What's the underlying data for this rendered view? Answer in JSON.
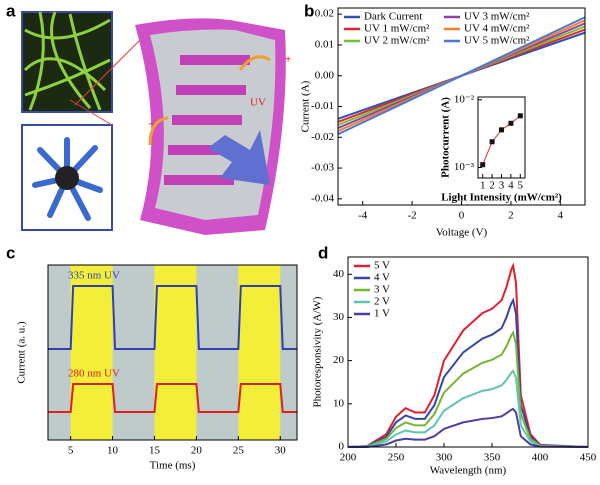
{
  "panel_labels": [
    "a",
    "b",
    "c",
    "d"
  ],
  "illustration": {
    "labels": [
      "UV",
      "+",
      "−"
    ]
  },
  "chart_data": [
    {
      "type": "line",
      "xlabel": "Voltage (V)",
      "ylabel": "Current (A)",
      "x": [
        -5,
        5
      ],
      "xlim": [
        -5,
        5
      ],
      "xticks": [
        -4,
        -2,
        0,
        2,
        4
      ],
      "ylim": [
        -0.042,
        0.022
      ],
      "yticks": [
        -0.04,
        -0.03,
        -0.02,
        -0.01,
        {
          "value": 0,
          "label": "0.00"
        },
        0.01,
        0.02
      ],
      "legend": "upper left",
      "legend_columns": 2,
      "series": [
        {
          "name": "Dark Current",
          "color": "#2f4fbf",
          "values": [
            -0.014,
            0.014
          ]
        },
        {
          "name": "UV 1 mW/cm²",
          "color": "#e02828",
          "values": [
            -0.015,
            0.015
          ]
        },
        {
          "name": "UV 2 mW/cm²",
          "color": "#72c034",
          "values": [
            -0.016,
            0.016
          ]
        },
        {
          "name": "UV 3 mW/cm²",
          "color": "#9040a8",
          "values": [
            -0.017,
            0.017
          ]
        },
        {
          "name": "UV 4 mW/cm²",
          "color": "#f08030",
          "values": [
            -0.018,
            0.018
          ]
        },
        {
          "name": "UV 5 mW/cm²",
          "color": "#4a78d8",
          "values": [
            -0.019,
            0.019
          ]
        }
      ]
    },
    {
      "type": "scatter",
      "xlabel": "Light Intensity (mW/cm²)",
      "ylabel": "Photocurrent (A)",
      "x": [
        1,
        2,
        3,
        4,
        5
      ],
      "values": [
        0.0011,
        0.0024,
        0.0036,
        0.0045,
        0.0058
      ],
      "color": "#111111",
      "line_color": "#e03030",
      "xlim": [
        0.5,
        5.5
      ],
      "xticks": [
        1,
        2,
        3,
        4,
        5
      ],
      "ylog": true,
      "ylim": [
        0.0007,
        0.011
      ],
      "yticks": [
        {
          "value": 0.001,
          "label": "10⁻³"
        },
        {
          "value": 0.01,
          "label": "10⁻²"
        }
      ]
    },
    {
      "type": "line",
      "xlabel": "Time (ms)",
      "ylabel": "Current (a. u.)",
      "x": [
        2.3,
        5,
        5.3,
        10,
        10.3,
        15,
        15.3,
        20,
        20.3,
        25,
        25.3,
        30,
        30.3,
        32
      ],
      "xlim": [
        2.3,
        32
      ],
      "xticks": [
        5,
        10,
        15,
        20,
        25,
        30
      ],
      "ylim": [
        0,
        1
      ],
      "plot_background": "#bfcbcb",
      "shade_color": "#f2ee3a",
      "shaded": [
        [
          5,
          10
        ],
        [
          15,
          20
        ],
        [
          25,
          30
        ]
      ],
      "series_labels": true,
      "series": [
        {
          "name": "335 nm UV",
          "color": "#3040b0",
          "values": [
            0.52,
            0.52,
            0.88,
            0.88,
            0.52,
            0.52,
            0.88,
            0.88,
            0.52,
            0.52,
            0.88,
            0.88,
            0.52,
            0.52
          ]
        },
        {
          "name": "280 nm UV",
          "color": "#e02020",
          "values": [
            0.16,
            0.16,
            0.32,
            0.32,
            0.16,
            0.16,
            0.32,
            0.32,
            0.16,
            0.16,
            0.32,
            0.32,
            0.16,
            0.16
          ]
        }
      ]
    },
    {
      "type": "line",
      "xlabel": "Wavelength (nm)",
      "ylabel": "Photoresponsivity (A/W)",
      "x": [
        200,
        220,
        240,
        250,
        260,
        270,
        280,
        290,
        300,
        320,
        340,
        350,
        360,
        365,
        370,
        372,
        375,
        380,
        390,
        400,
        450
      ],
      "xlim": [
        200,
        450
      ],
      "xticks": [
        200,
        250,
        300,
        350,
        400,
        450
      ],
      "ylim": [
        0,
        44
      ],
      "yticks": [
        0,
        10,
        20,
        30,
        40
      ],
      "legend": "upper left",
      "legend_columns": 1,
      "series": [
        {
          "name": "5 V",
          "color": "#e02030",
          "values": [
            0,
            0.2,
            3,
            7,
            9,
            8,
            8,
            12,
            20,
            27,
            31,
            32,
            34,
            37,
            41,
            42,
            38,
            12,
            3,
            0.5,
            0
          ]
        },
        {
          "name": "4 V",
          "color": "#3446a8",
          "values": [
            0,
            0.2,
            2.4,
            5.7,
            7.3,
            6.5,
            6.5,
            9.7,
            16.2,
            21.9,
            25.1,
            26,
            27.5,
            30,
            33.2,
            34,
            30.8,
            9.7,
            2.4,
            0.4,
            0
          ]
        },
        {
          "name": "3 V",
          "color": "#76b632",
          "values": [
            0,
            0.1,
            1.9,
            4.4,
            5.7,
            5,
            5,
            7.6,
            12.6,
            17,
            19.5,
            20.2,
            21.4,
            23.3,
            25.8,
            26.5,
            23.9,
            7.6,
            1.9,
            0.3,
            0
          ]
        },
        {
          "name": "2 V",
          "color": "#62c4b4",
          "values": [
            0,
            0.1,
            1.3,
            2.9,
            3.8,
            3.4,
            3.4,
            5,
            8.4,
            11.3,
            13,
            13.4,
            14.3,
            15.5,
            17.2,
            17.6,
            16,
            5,
            1.3,
            0.2,
            0
          ]
        },
        {
          "name": "1 V",
          "color": "#4a3fa0",
          "values": [
            0,
            0,
            0.6,
            1.5,
            1.9,
            1.7,
            1.7,
            2.5,
            4.2,
            5.7,
            6.5,
            6.7,
            7.1,
            7.8,
            8.6,
            8.8,
            8,
            2.5,
            0.6,
            0.1,
            0
          ]
        }
      ]
    }
  ]
}
